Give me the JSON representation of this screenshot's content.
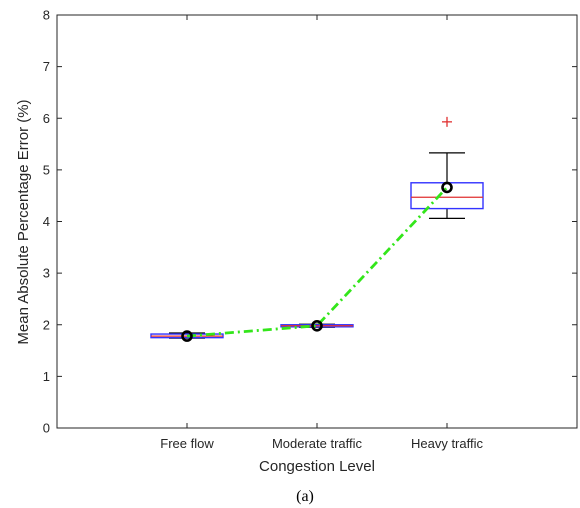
{
  "chart_data": {
    "type": "box",
    "title": "",
    "xlabel": "Congestion Level",
    "ylabel": "Mean Absolute Percentage Error (%)",
    "caption": "(a)",
    "categories": [
      "Free flow",
      "Moderate traffic",
      "Heavy traffic"
    ],
    "ylim": [
      0,
      8
    ],
    "yticks": [
      0,
      1,
      2,
      3,
      4,
      5,
      6,
      7,
      8
    ],
    "boxes": [
      {
        "category": "Free flow",
        "q1": 1.75,
        "median": 1.78,
        "q3": 1.82,
        "whisker_low": 1.74,
        "whisker_high": 1.84,
        "outliers": []
      },
      {
        "category": "Moderate traffic",
        "q1": 1.96,
        "median": 1.98,
        "q3": 2.0,
        "whisker_low": 1.95,
        "whisker_high": 2.01,
        "outliers": []
      },
      {
        "category": "Heavy traffic",
        "q1": 4.25,
        "median": 4.47,
        "q3": 4.75,
        "whisker_low": 4.06,
        "whisker_high": 5.33,
        "outliers": [
          5.93
        ]
      }
    ],
    "mean_line": {
      "values": [
        1.78,
        1.98,
        4.66
      ],
      "style": "dash-dot",
      "color": "#33e61a"
    },
    "colors": {
      "box": "#3333ff",
      "median": "#e03030",
      "whisker": "#000000",
      "outlier": "#e03030",
      "mean_marker": "#000000"
    },
    "grid": false
  }
}
